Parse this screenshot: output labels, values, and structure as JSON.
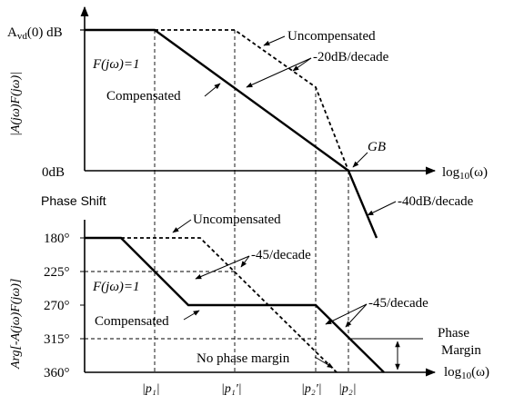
{
  "mag_panel": {
    "y_top_label_main": "A",
    "y_top_label_sub": "vd",
    "y_top_label_rest": "(0) dB",
    "y_zero_label": "0dB",
    "y_axis_title": "|A(jω)F(jω)|",
    "x_axis_label": "log",
    "x_axis_label_sub": "10",
    "x_axis_label_rest": "(ω)",
    "f_label": "F(jω)=1",
    "uncomp_label": "Uncompensated",
    "comp_label": "Compensated",
    "slope20_label": "-20dB/decade",
    "slope40_label": "-40dB/decade",
    "gb_label": "GB"
  },
  "phase_panel": {
    "title": "Phase Shift",
    "y_axis_title": "Arg[-A(jω)F(jω)]",
    "ticks": [
      "180°",
      "225°",
      "270°",
      "315°",
      "360°"
    ],
    "x_axis_label": "log",
    "x_axis_label_sub": "10",
    "x_axis_label_rest": "(ω)",
    "f_label": "F(jω)=1",
    "uncomp_label": "Uncompensated",
    "comp_label": "Compensated",
    "slope45a_label": "-45/decade",
    "slope45b_label": "-45/decade",
    "no_margin_label": "No phase margin",
    "phase_margin_line1": "Phase",
    "phase_margin_line2": "Margin",
    "x_ticks": [
      "|p₁|",
      "|p₁'|",
      "|p₂'|",
      "|p₂|"
    ]
  }
}
